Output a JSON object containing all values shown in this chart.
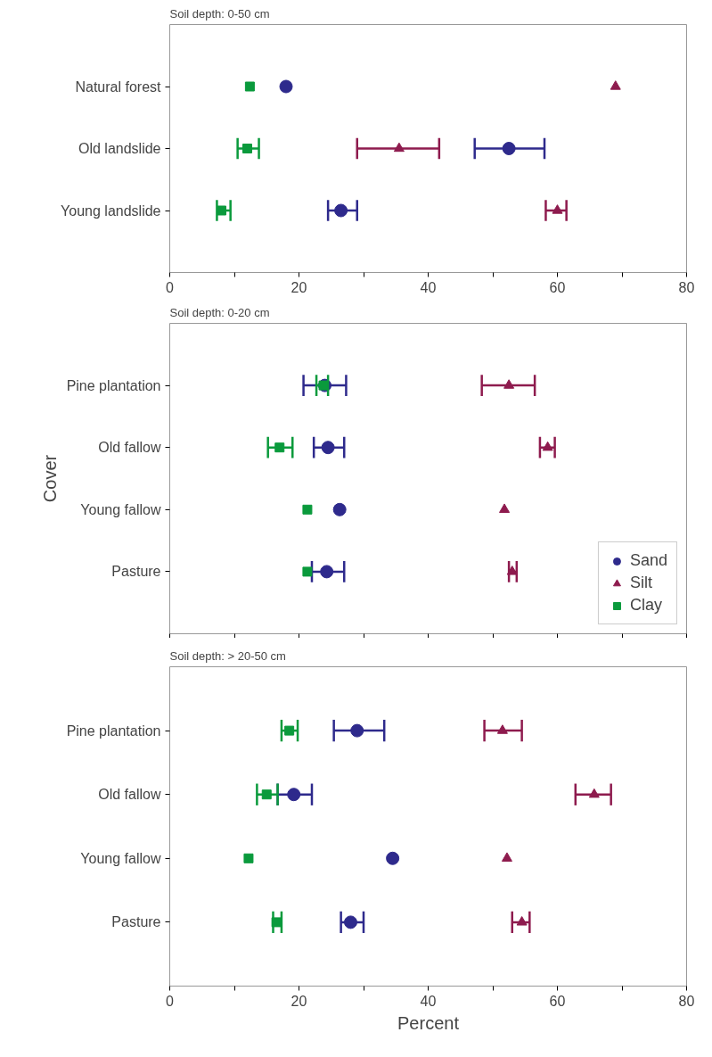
{
  "chart_data": [
    {
      "type": "scatter",
      "title": "Soil depth: 0-50 cm",
      "categories": [
        "Natural forest",
        "Old landslide",
        "Young landslide"
      ],
      "orientation": "horizontal",
      "xlim": [
        0,
        80
      ],
      "xticks": [
        0,
        {
          "value": 10,
          "label": null
        },
        20,
        {
          "value": 30,
          "label": null
        },
        40,
        {
          "value": 50,
          "label": null
        },
        60,
        {
          "value": 70,
          "label": null
        },
        80
      ],
      "grid": false,
      "legend": false,
      "series": [
        {
          "color": "#2e2a8c",
          "marker": "circle",
          "values": [
            18,
            52.5,
            26.5
          ],
          "errors": [
            null,
            [
              47.2,
              58
            ],
            [
              24.5,
              29
            ]
          ]
        },
        {
          "color": "#8e1b4e",
          "marker": "triangle",
          "values": [
            69,
            35.5,
            60
          ],
          "errors": [
            null,
            [
              29,
              41.7
            ],
            [
              58.2,
              61.4
            ]
          ]
        },
        {
          "color": "#0a9a3c",
          "marker": "square",
          "values": [
            12.4,
            12,
            8
          ],
          "errors": [
            null,
            [
              10.5,
              13.8
            ],
            [
              7.3,
              9.4
            ]
          ]
        }
      ]
    },
    {
      "type": "scatter",
      "title": "Soil depth: 0-20 cm",
      "ylabel": "Cover",
      "categories": [
        "Pine plantation",
        "Old fallow",
        "Young fallow",
        "Pasture"
      ],
      "orientation": "horizontal",
      "xlim": [
        0,
        80
      ],
      "xticks": [
        0,
        {
          "value": 10,
          "label": null
        },
        20,
        {
          "value": 30,
          "label": null
        },
        40,
        {
          "value": 50,
          "label": null
        },
        60,
        {
          "value": 70,
          "label": null
        },
        80
      ],
      "tick_labels": "y",
      "grid": false,
      "legend": "bottom right",
      "series": [
        {
          "name": "Sand",
          "color": "#2e2a8c",
          "marker": "circle",
          "values": [
            24,
            24.5,
            26.3,
            24.3
          ],
          "errors": [
            [
              20.7,
              27.3
            ],
            [
              22.3,
              27
            ],
            null,
            [
              22,
              27
            ]
          ]
        },
        {
          "name": "Silt",
          "color": "#8e1b4e",
          "marker": "triangle",
          "values": [
            52.5,
            58.5,
            51.8,
            53
          ],
          "errors": [
            [
              48.3,
              56.5
            ],
            [
              57.3,
              59.6
            ],
            null,
            [
              52.5,
              53.7
            ]
          ]
        },
        {
          "name": "Clay",
          "color": "#0a9a3c",
          "marker": "square",
          "values": [
            23.8,
            17,
            21.3,
            21.3
          ],
          "errors": [
            [
              22.7,
              24.5
            ],
            [
              15.2,
              19
            ],
            null,
            null
          ]
        }
      ]
    },
    {
      "type": "scatter",
      "title": "Soil depth: > 20-50 cm",
      "xlabel": "Percent",
      "categories": [
        "Pine plantation",
        "Old fallow",
        "Young fallow",
        "Pasture"
      ],
      "orientation": "horizontal",
      "xlim": [
        0,
        80
      ],
      "xticks": [
        0,
        {
          "value": 10,
          "label": null
        },
        20,
        {
          "value": 30,
          "label": null
        },
        40,
        {
          "value": 50,
          "label": null
        },
        60,
        {
          "value": 70,
          "label": null
        },
        80
      ],
      "grid": false,
      "legend": false,
      "series": [
        {
          "color": "#2e2a8c",
          "marker": "circle",
          "values": [
            29,
            19.2,
            34.5,
            28
          ],
          "errors": [
            [
              25.4,
              33.2
            ],
            [
              16.7,
              22
            ],
            null,
            [
              26.5,
              30
            ]
          ]
        },
        {
          "color": "#8e1b4e",
          "marker": "triangle",
          "values": [
            51.5,
            65.7,
            52.2,
            54.5
          ],
          "errors": [
            [
              48.7,
              54.5
            ],
            [
              62.8,
              68.3
            ],
            null,
            [
              53,
              55.7
            ]
          ]
        },
        {
          "color": "#0a9a3c",
          "marker": "square",
          "values": [
            18.5,
            15,
            12.2,
            16.5
          ],
          "errors": [
            [
              17.3,
              19.8
            ],
            [
              13.5,
              16.7
            ],
            null,
            [
              16,
              17.3
            ]
          ]
        }
      ]
    }
  ]
}
